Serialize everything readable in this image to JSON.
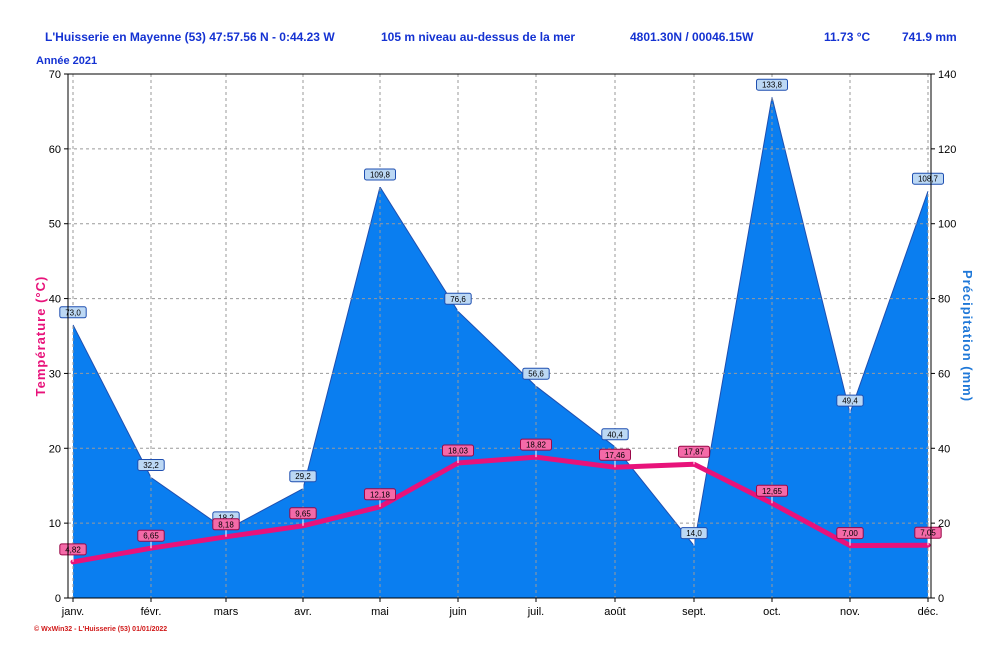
{
  "header": {
    "station": "L'Huisserie en Mayenne (53) 47:57.56 N - 0:44.23 W",
    "altitude": "105 m niveau au-dessus de la mer",
    "coords": "4801.30N / 00046.15W",
    "temperature": "11.73 °C",
    "precipitation": "741.9 mm",
    "year": "Année  2021"
  },
  "footer": "© WxWin32 - L'Huisserie (53)  01/01/2022",
  "colors": {
    "temperature": "#e8127a",
    "precipitation_fill": "#0a7ef0",
    "precipitation_line": "#1f4fb0",
    "header_text": "#1432d2",
    "grid": "#9a9a9a"
  },
  "chart_data": {
    "type": "area+line",
    "categories": [
      "janv.",
      "févr.",
      "mars",
      "avr.",
      "mai",
      "juin",
      "juil.",
      "août",
      "sept.",
      "oct.",
      "nov.",
      "déc."
    ],
    "left_axis": {
      "label": "Température  (°C)",
      "min": 0,
      "max": 70,
      "ticks": [
        0,
        10,
        20,
        30,
        40,
        50,
        60,
        70
      ]
    },
    "right_axis": {
      "label": "Précipitation  (mm)",
      "min": 0,
      "max": 140,
      "ticks": [
        0,
        20,
        40,
        60,
        80,
        100,
        120,
        140
      ]
    },
    "grid": true,
    "series": [
      {
        "name": "Précipitation",
        "axis": "right",
        "kind": "area",
        "values": [
          73.0,
          32.2,
          18.2,
          29.2,
          109.8,
          76.6,
          56.6,
          40.4,
          14.0,
          133.8,
          49.4,
          108.7
        ],
        "labels": [
          "73,0",
          "32,2",
          "18,2",
          "29,2",
          "109,8",
          "76,6",
          "56,6",
          "40,4",
          "14,0",
          "133,8",
          "49,4",
          "108,7"
        ]
      },
      {
        "name": "Température",
        "axis": "left",
        "kind": "line",
        "values": [
          4.82,
          6.65,
          8.18,
          9.65,
          12.18,
          18.03,
          18.82,
          17.46,
          17.87,
          12.65,
          7.0,
          7.05
        ],
        "labels": [
          "4,82",
          "6,65",
          "8,18",
          "9,65",
          "12,18",
          "18,03",
          "18,82",
          "17,46",
          "17,87",
          "12,65",
          "7,00",
          "7,05"
        ]
      }
    ]
  }
}
